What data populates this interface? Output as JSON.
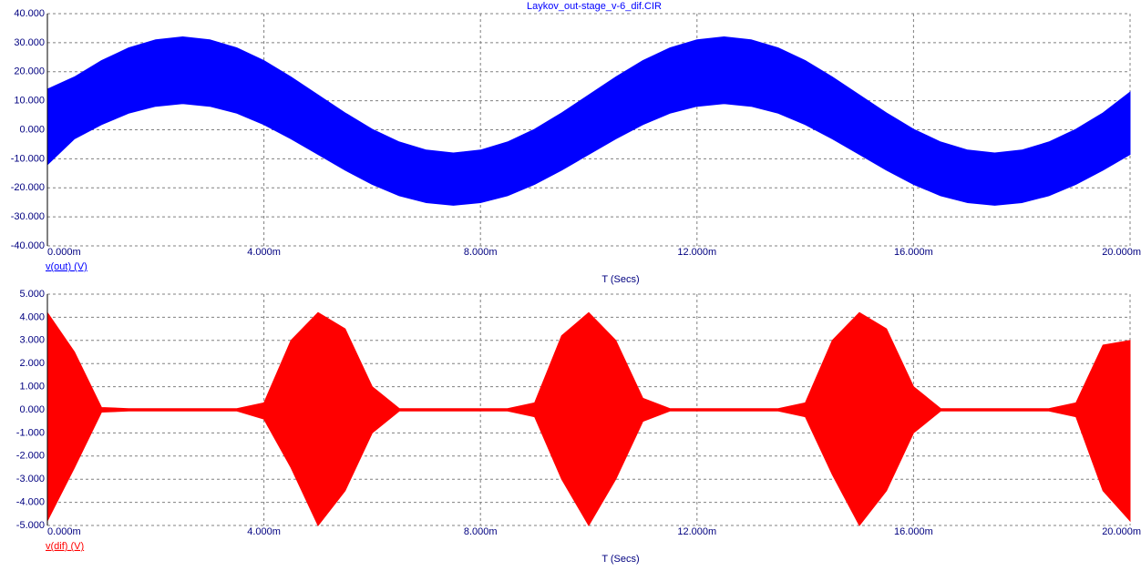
{
  "chart_data": [
    {
      "type": "band",
      "title": "Laykov_out-stage_v-6_dif.CIR",
      "x_label": "T (Secs)",
      "x": [
        0,
        0.0005,
        0.001,
        0.0015,
        0.002,
        0.0025,
        0.003,
        0.0035,
        0.004,
        0.0045,
        0.005,
        0.0055,
        0.006,
        0.0065,
        0.007,
        0.0075,
        0.008,
        0.0085,
        0.009,
        0.0095,
        0.01,
        0.0105,
        0.011,
        0.0115,
        0.012,
        0.0125,
        0.013,
        0.0135,
        0.014,
        0.0145,
        0.015,
        0.0155,
        0.016,
        0.0165,
        0.017,
        0.0175,
        0.018,
        0.0185,
        0.019,
        0.0195,
        0.02
      ],
      "series": [
        {
          "name": "v(out) (V)",
          "color": "#0000ff",
          "high": [
            14,
            18.2,
            23.8,
            28.2,
            31,
            32,
            31,
            28.2,
            23.8,
            18.2,
            12,
            5.8,
            0.2,
            -4.2,
            -7,
            -8,
            -7,
            -4.2,
            0.2,
            5.8,
            12,
            18.2,
            23.8,
            28.2,
            31,
            32,
            31,
            28.2,
            23.8,
            18.2,
            12,
            5.8,
            0.2,
            -4.2,
            -7,
            -8,
            -7,
            -4.2,
            0.2,
            5.8,
            13
          ],
          "low": [
            -12,
            -3.1,
            1.8,
            5.7,
            8.1,
            9,
            8.1,
            5.7,
            1.8,
            -3.1,
            -8.5,
            -13.9,
            -18.8,
            -22.7,
            -25.1,
            -26,
            -25.1,
            -22.7,
            -18.8,
            -13.9,
            -8.5,
            -3.1,
            1.8,
            5.7,
            8.1,
            9,
            8.1,
            5.7,
            1.8,
            -3.1,
            -8.5,
            -13.9,
            -18.8,
            -22.7,
            -25.1,
            -26,
            -25.1,
            -22.7,
            -18.8,
            -13.9,
            -8.5
          ]
        }
      ],
      "xlim": [
        0,
        0.02
      ],
      "ylim": [
        -40,
        40
      ],
      "xticks": [
        {
          "value": 0,
          "label": "0.000m"
        },
        {
          "value": 0.004,
          "label": "4.000m"
        },
        {
          "value": 0.008,
          "label": "8.000m"
        },
        {
          "value": 0.012,
          "label": "12.000m"
        },
        {
          "value": 0.016,
          "label": "16.000m"
        },
        {
          "value": 0.02,
          "label": "20.000m"
        }
      ],
      "yticks": [
        {
          "value": -40,
          "label": "-40.000"
        },
        {
          "value": -30,
          "label": "-30.000"
        },
        {
          "value": -20,
          "label": "-20.000"
        },
        {
          "value": -10,
          "label": "-10.000"
        },
        {
          "value": 0,
          "label": "0.000"
        },
        {
          "value": 10,
          "label": "10.000"
        },
        {
          "value": 20,
          "label": "20.000"
        },
        {
          "value": 30,
          "label": "30.000"
        },
        {
          "value": 40,
          "label": "40.000"
        }
      ],
      "grid": true
    },
    {
      "type": "band",
      "x_label": "T (Secs)",
      "x": [
        0,
        0.0005,
        0.001,
        0.0015,
        0.002,
        0.0025,
        0.003,
        0.0035,
        0.004,
        0.0045,
        0.005,
        0.0055,
        0.006,
        0.0065,
        0.007,
        0.0075,
        0.008,
        0.0085,
        0.009,
        0.0095,
        0.01,
        0.0105,
        0.011,
        0.0115,
        0.012,
        0.0125,
        0.013,
        0.0135,
        0.014,
        0.0145,
        0.015,
        0.0155,
        0.016,
        0.0165,
        0.017,
        0.0175,
        0.018,
        0.0185,
        0.019,
        0.0195,
        0.02
      ],
      "series": [
        {
          "name": "v(dif) (V)",
          "color": "#ff0000",
          "high": [
            4.2,
            2.5,
            0.1,
            0.05,
            0.05,
            0.05,
            0.05,
            0.05,
            0.3,
            3,
            4.2,
            3.5,
            1,
            0.05,
            0.05,
            0.05,
            0.05,
            0.05,
            0.3,
            3.2,
            4.2,
            3,
            0.5,
            0.05,
            0.05,
            0.05,
            0.05,
            0.05,
            0.3,
            3,
            4.2,
            3.5,
            1,
            0.05,
            0.05,
            0.05,
            0.05,
            0.05,
            0.3,
            2.8,
            3
          ],
          "low": [
            -4.8,
            -2.5,
            -0.1,
            -0.05,
            -0.05,
            -0.05,
            -0.05,
            -0.05,
            -0.4,
            -2.5,
            -5,
            -3.5,
            -1,
            -0.05,
            -0.05,
            -0.05,
            -0.05,
            -0.05,
            -0.3,
            -3,
            -5,
            -3,
            -0.5,
            -0.05,
            -0.05,
            -0.05,
            -0.05,
            -0.05,
            -0.3,
            -2.8,
            -5,
            -3.5,
            -1,
            -0.05,
            -0.05,
            -0.05,
            -0.05,
            -0.05,
            -0.3,
            -3.5,
            -4.8
          ]
        }
      ],
      "xlim": [
        0,
        0.02
      ],
      "ylim": [
        -5,
        5
      ],
      "xticks": [
        {
          "value": 0,
          "label": "0.000m"
        },
        {
          "value": 0.004,
          "label": "4.000m"
        },
        {
          "value": 0.008,
          "label": "8.000m"
        },
        {
          "value": 0.012,
          "label": "12.000m"
        },
        {
          "value": 0.016,
          "label": "16.000m"
        },
        {
          "value": 0.02,
          "label": "20.000m"
        }
      ],
      "yticks": [
        {
          "value": -5,
          "label": "-5.000"
        },
        {
          "value": -4,
          "label": "-4.000"
        },
        {
          "value": -3,
          "label": "-3.000"
        },
        {
          "value": -2,
          "label": "-2.000"
        },
        {
          "value": -1,
          "label": "-1.000"
        },
        {
          "value": 0,
          "label": "0.000"
        },
        {
          "value": 1,
          "label": "1.000"
        },
        {
          "value": 2,
          "label": "2.000"
        },
        {
          "value": 3,
          "label": "3.000"
        },
        {
          "value": 4,
          "label": "4.000"
        },
        {
          "value": 5,
          "label": "5.000"
        }
      ],
      "grid": true
    }
  ]
}
